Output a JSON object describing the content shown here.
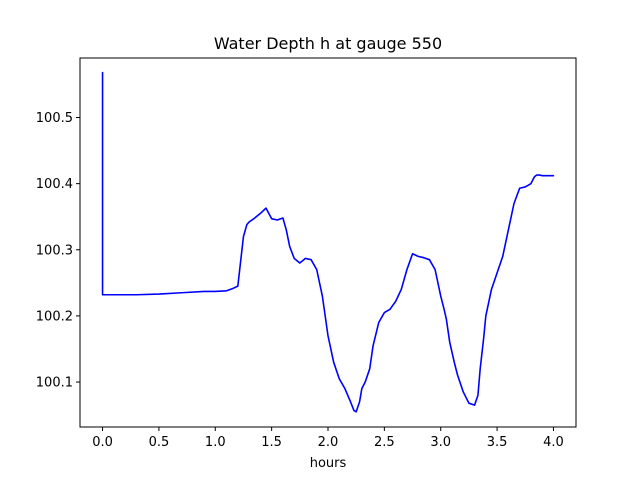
{
  "chart_data": {
    "type": "line",
    "title": "Water Depth h at gauge 550",
    "xlabel": "hours",
    "ylabel": "",
    "xlim": [
      -0.2,
      4.2
    ],
    "ylim": [
      100.032,
      100.59
    ],
    "x_ticks": [
      0.0,
      0.5,
      1.0,
      1.5,
      2.0,
      2.5,
      3.0,
      3.5,
      4.0
    ],
    "x_tick_labels": [
      "0.0",
      "0.5",
      "1.0",
      "1.5",
      "2.0",
      "2.5",
      "3.0",
      "3.5",
      "4.0"
    ],
    "y_ticks": [
      100.1,
      100.2,
      100.3,
      100.4,
      100.5
    ],
    "y_tick_labels": [
      "100.1",
      "100.2",
      "100.3",
      "100.4",
      "100.5"
    ],
    "grid": false,
    "legend": "none",
    "series": [
      {
        "color": "#0000ff",
        "x": [
          0.0,
          0.0,
          0.0,
          0.1,
          0.3,
          0.5,
          0.7,
          0.9,
          1.0,
          1.1,
          1.15,
          1.2,
          1.22,
          1.25,
          1.28,
          1.3,
          1.35,
          1.4,
          1.45,
          1.5,
          1.55,
          1.6,
          1.63,
          1.66,
          1.7,
          1.75,
          1.8,
          1.85,
          1.9,
          1.95,
          2.0,
          2.05,
          2.1,
          2.15,
          2.2,
          2.23,
          2.25,
          2.28,
          2.3,
          2.33,
          2.37,
          2.4,
          2.45,
          2.5,
          2.55,
          2.6,
          2.65,
          2.7,
          2.75,
          2.8,
          2.85,
          2.9,
          2.95,
          3.0,
          3.03,
          3.05,
          3.08,
          3.12,
          3.15,
          3.2,
          3.25,
          3.3,
          3.33,
          3.35,
          3.38,
          3.4,
          3.45,
          3.5,
          3.55,
          3.6,
          3.65,
          3.7,
          3.75,
          3.8,
          3.83,
          3.85,
          3.88,
          3.9,
          3.93,
          3.95,
          3.98,
          4.0
        ],
        "y": [
          100.567,
          100.568,
          100.232,
          100.232,
          100.232,
          100.233,
          100.235,
          100.237,
          100.237,
          100.238,
          100.241,
          100.245,
          100.275,
          100.32,
          100.338,
          100.342,
          100.348,
          100.355,
          100.363,
          100.347,
          100.345,
          100.348,
          100.33,
          100.305,
          100.287,
          100.28,
          100.287,
          100.285,
          100.27,
          100.23,
          100.17,
          100.13,
          100.105,
          100.09,
          100.07,
          100.057,
          100.055,
          100.07,
          100.09,
          100.1,
          100.12,
          100.155,
          100.19,
          100.205,
          100.21,
          100.222,
          100.24,
          100.27,
          100.294,
          100.29,
          100.288,
          100.285,
          100.27,
          100.23,
          100.21,
          100.195,
          100.16,
          100.13,
          100.11,
          100.085,
          100.068,
          100.065,
          100.08,
          100.12,
          100.165,
          100.2,
          100.24,
          100.265,
          100.29,
          100.33,
          100.37,
          100.393,
          100.395,
          100.4,
          100.41,
          100.413,
          100.413,
          100.412,
          100.412,
          100.412,
          100.412,
          100.412
        ]
      }
    ]
  }
}
